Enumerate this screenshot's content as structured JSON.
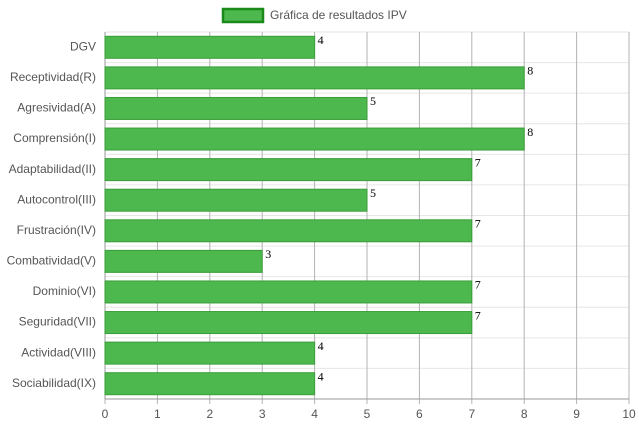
{
  "chart_data": {
    "type": "bar",
    "orientation": "horizontal",
    "categories": [
      "DGV",
      "Receptividad(R)",
      "Agresividad(A)",
      "Comprensión(I)",
      "Adaptabilidad(II)",
      "Autocontrol(III)",
      "Frustración(IV)",
      "Combatividad(V)",
      "Dominio(VI)",
      "Seguridad(VII)",
      "Actividad(VIII)",
      "Sociabilidad(IX)"
    ],
    "series": [
      {
        "name": "Gráfica de resultados IPV",
        "color": "#4db84d",
        "values": [
          4,
          8,
          5,
          8,
          7,
          5,
          7,
          3,
          7,
          7,
          4,
          4
        ]
      }
    ],
    "xlim": [
      0,
      10
    ],
    "xticks": [
      0,
      1,
      2,
      3,
      4,
      5,
      6,
      7,
      8,
      9,
      10
    ],
    "grid": true,
    "legend": "top"
  }
}
